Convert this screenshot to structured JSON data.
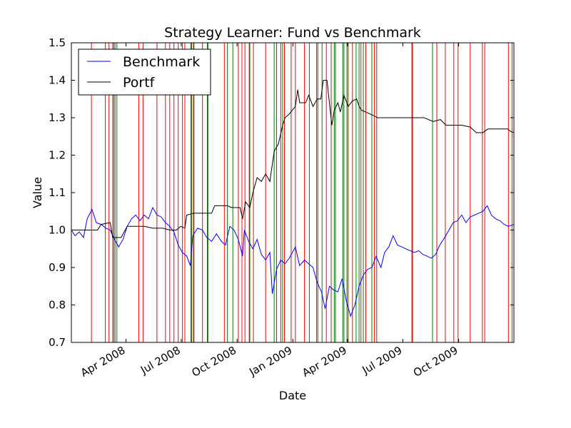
{
  "chart_data": {
    "type": "line",
    "title": "Strategy Learner: Fund vs Benchmark",
    "xlabel": "Date",
    "ylabel": "Value",
    "xlim": [
      "2008-01-02",
      "2009-12-31"
    ],
    "ylim": [
      0.7,
      1.5
    ],
    "x_ticks": [
      {
        "date": "2008-04-01",
        "label": "Apr 2008"
      },
      {
        "date": "2008-07-01",
        "label": "Jul 2008"
      },
      {
        "date": "2008-10-01",
        "label": "Oct 2008"
      },
      {
        "date": "2009-01-01",
        "label": "Jan 2009"
      },
      {
        "date": "2009-04-01",
        "label": "Apr 2009"
      },
      {
        "date": "2009-07-01",
        "label": "Jul 2009"
      },
      {
        "date": "2009-10-01",
        "label": "Oct 2009"
      }
    ],
    "y_ticks": [
      "0.7",
      "0.8",
      "0.9",
      "1.0",
      "1.1",
      "1.2",
      "1.3",
      "1.4",
      "1.5"
    ],
    "legend": {
      "position": "top-left"
    },
    "grid": false,
    "series": [
      {
        "name": "Benchmark",
        "color": "#0000ff",
        "points": [
          [
            "2008-01-02",
            1.0
          ],
          [
            "2008-01-08",
            0.985
          ],
          [
            "2008-01-15",
            0.995
          ],
          [
            "2008-01-22",
            0.98
          ],
          [
            "2008-01-28",
            1.03
          ],
          [
            "2008-02-05",
            1.055
          ],
          [
            "2008-02-12",
            1.02
          ],
          [
            "2008-02-20",
            1.015
          ],
          [
            "2008-02-28",
            1.005
          ],
          [
            "2008-03-06",
            1.0
          ],
          [
            "2008-03-13",
            0.975
          ],
          [
            "2008-03-20",
            0.955
          ],
          [
            "2008-03-27",
            0.975
          ],
          [
            "2008-04-03",
            1.01
          ],
          [
            "2008-04-10",
            1.03
          ],
          [
            "2008-04-17",
            1.04
          ],
          [
            "2008-04-24",
            1.025
          ],
          [
            "2008-05-01",
            1.04
          ],
          [
            "2008-05-08",
            1.03
          ],
          [
            "2008-05-15",
            1.06
          ],
          [
            "2008-05-22",
            1.04
          ],
          [
            "2008-05-29",
            1.035
          ],
          [
            "2008-06-05",
            1.02
          ],
          [
            "2008-06-12",
            1.01
          ],
          [
            "2008-06-19",
            0.995
          ],
          [
            "2008-06-26",
            0.96
          ],
          [
            "2008-07-03",
            0.94
          ],
          [
            "2008-07-10",
            0.93
          ],
          [
            "2008-07-16",
            0.905
          ],
          [
            "2008-07-20",
            0.985
          ],
          [
            "2008-07-28",
            1.005
          ],
          [
            "2008-08-05",
            1.0
          ],
          [
            "2008-08-12",
            0.98
          ],
          [
            "2008-08-20",
            0.97
          ],
          [
            "2008-08-28",
            0.99
          ],
          [
            "2008-09-05",
            0.97
          ],
          [
            "2008-09-12",
            0.96
          ],
          [
            "2008-09-19",
            1.01
          ],
          [
            "2008-09-26",
            1.0
          ],
          [
            "2008-10-03",
            0.975
          ],
          [
            "2008-10-10",
            0.93
          ],
          [
            "2008-10-13",
            1.0
          ],
          [
            "2008-10-20",
            0.97
          ],
          [
            "2008-10-27",
            0.95
          ],
          [
            "2008-11-03",
            0.975
          ],
          [
            "2008-11-10",
            0.935
          ],
          [
            "2008-11-17",
            0.92
          ],
          [
            "2008-11-24",
            0.94
          ],
          [
            "2008-11-28",
            0.83
          ],
          [
            "2008-12-05",
            0.895
          ],
          [
            "2008-12-12",
            0.92
          ],
          [
            "2008-12-19",
            0.91
          ],
          [
            "2008-12-26",
            0.925
          ],
          [
            "2009-01-05",
            0.955
          ],
          [
            "2009-01-12",
            0.905
          ],
          [
            "2009-01-20",
            0.92
          ],
          [
            "2009-01-27",
            0.91
          ],
          [
            "2009-02-03",
            0.9
          ],
          [
            "2009-02-10",
            0.86
          ],
          [
            "2009-02-17",
            0.835
          ],
          [
            "2009-02-23",
            0.79
          ],
          [
            "2009-03-02",
            0.85
          ],
          [
            "2009-03-09",
            0.84
          ],
          [
            "2009-03-16",
            0.835
          ],
          [
            "2009-03-23",
            0.87
          ],
          [
            "2009-03-30",
            0.81
          ],
          [
            "2009-04-06",
            0.77
          ],
          [
            "2009-04-13",
            0.8
          ],
          [
            "2009-04-20",
            0.85
          ],
          [
            "2009-04-27",
            0.88
          ],
          [
            "2009-05-04",
            0.895
          ],
          [
            "2009-05-11",
            0.9
          ],
          [
            "2009-05-18",
            0.93
          ],
          [
            "2009-05-26",
            0.9
          ],
          [
            "2009-06-01",
            0.94
          ],
          [
            "2009-06-08",
            0.955
          ],
          [
            "2009-06-15",
            0.985
          ],
          [
            "2009-06-22",
            0.96
          ],
          [
            "2009-06-29",
            0.955
          ],
          [
            "2009-07-06",
            0.95
          ],
          [
            "2009-07-13",
            0.945
          ],
          [
            "2009-07-20",
            0.94
          ],
          [
            "2009-07-27",
            0.945
          ],
          [
            "2009-08-03",
            0.935
          ],
          [
            "2009-08-10",
            0.93
          ],
          [
            "2009-08-17",
            0.925
          ],
          [
            "2009-08-24",
            0.935
          ],
          [
            "2009-08-31",
            0.96
          ],
          [
            "2009-09-08",
            0.98
          ],
          [
            "2009-09-15",
            1.0
          ],
          [
            "2009-09-22",
            1.02
          ],
          [
            "2009-09-29",
            1.025
          ],
          [
            "2009-10-06",
            1.04
          ],
          [
            "2009-10-13",
            1.02
          ],
          [
            "2009-10-20",
            1.035
          ],
          [
            "2009-10-27",
            1.04
          ],
          [
            "2009-11-03",
            1.045
          ],
          [
            "2009-11-10",
            1.05
          ],
          [
            "2009-11-17",
            1.065
          ],
          [
            "2009-11-24",
            1.04
          ],
          [
            "2009-12-01",
            1.03
          ],
          [
            "2009-12-08",
            1.025
          ],
          [
            "2009-12-15",
            1.015
          ],
          [
            "2009-12-22",
            1.01
          ],
          [
            "2009-12-31",
            1.015
          ]
        ]
      },
      {
        "name": "Portf",
        "color": "#000000",
        "points": [
          [
            "2008-01-02",
            1.0
          ],
          [
            "2008-02-14",
            1.0
          ],
          [
            "2008-02-20",
            1.015
          ],
          [
            "2008-03-06",
            1.02
          ],
          [
            "2008-03-10",
            0.98
          ],
          [
            "2008-03-24",
            0.98
          ],
          [
            "2008-04-03",
            1.01
          ],
          [
            "2008-05-01",
            1.01
          ],
          [
            "2008-05-15",
            1.005
          ],
          [
            "2008-06-01",
            1.005
          ],
          [
            "2008-06-12",
            1.0
          ],
          [
            "2008-06-23",
            1.0
          ],
          [
            "2008-06-30",
            1.01
          ],
          [
            "2008-07-07",
            1.005
          ],
          [
            "2008-07-10",
            1.04
          ],
          [
            "2008-07-22",
            1.045
          ],
          [
            "2008-08-05",
            1.045
          ],
          [
            "2008-08-20",
            1.045
          ],
          [
            "2008-08-25",
            1.065
          ],
          [
            "2008-09-15",
            1.065
          ],
          [
            "2008-09-22",
            1.06
          ],
          [
            "2008-10-06",
            1.06
          ],
          [
            "2008-10-10",
            1.03
          ],
          [
            "2008-10-15",
            1.075
          ],
          [
            "2008-10-22",
            1.06
          ],
          [
            "2008-10-27",
            1.1
          ],
          [
            "2008-11-03",
            1.14
          ],
          [
            "2008-11-10",
            1.13
          ],
          [
            "2008-11-17",
            1.15
          ],
          [
            "2008-11-24",
            1.13
          ],
          [
            "2008-12-01",
            1.21
          ],
          [
            "2008-12-08",
            1.23
          ],
          [
            "2008-12-15",
            1.28
          ],
          [
            "2008-12-19",
            1.3
          ],
          [
            "2008-12-26",
            1.31
          ],
          [
            "2009-01-05",
            1.33
          ],
          [
            "2009-01-09",
            1.375
          ],
          [
            "2009-01-12",
            1.34
          ],
          [
            "2009-01-22",
            1.34
          ],
          [
            "2009-01-27",
            1.36
          ],
          [
            "2009-02-03",
            1.33
          ],
          [
            "2009-02-10",
            1.35
          ],
          [
            "2009-02-16",
            1.35
          ],
          [
            "2009-02-20",
            1.4
          ],
          [
            "2009-02-26",
            1.4
          ],
          [
            "2009-03-04",
            1.31
          ],
          [
            "2009-03-06",
            1.28
          ],
          [
            "2009-03-10",
            1.32
          ],
          [
            "2009-03-16",
            1.34
          ],
          [
            "2009-03-20",
            1.315
          ],
          [
            "2009-03-26",
            1.36
          ],
          [
            "2009-04-02",
            1.33
          ],
          [
            "2009-04-09",
            1.345
          ],
          [
            "2009-04-16",
            1.35
          ],
          [
            "2009-04-20",
            1.33
          ],
          [
            "2009-04-24",
            1.32
          ],
          [
            "2009-05-01",
            1.315
          ],
          [
            "2009-05-08",
            1.31
          ],
          [
            "2009-05-15",
            1.305
          ],
          [
            "2009-05-20",
            1.3
          ],
          [
            "2009-06-15",
            1.3
          ],
          [
            "2009-07-20",
            1.3
          ],
          [
            "2009-08-05",
            1.3
          ],
          [
            "2009-08-20",
            1.29
          ],
          [
            "2009-09-01",
            1.295
          ],
          [
            "2009-09-10",
            1.28
          ],
          [
            "2009-10-06",
            1.28
          ],
          [
            "2009-10-20",
            1.275
          ],
          [
            "2009-10-30",
            1.26
          ],
          [
            "2009-11-10",
            1.26
          ],
          [
            "2009-11-18",
            1.27
          ],
          [
            "2009-12-21",
            1.27
          ],
          [
            "2009-12-24",
            1.265
          ],
          [
            "2009-12-31",
            1.26
          ]
        ]
      }
    ],
    "signal_lines": {
      "sell_color": "#ff0000",
      "buy_color": "#008000",
      "sell": [
        "2008-02-04",
        "2008-02-27",
        "2008-03-04",
        "2008-03-10",
        "2008-04-22",
        "2008-04-29",
        "2008-05-22",
        "2008-06-05",
        "2008-06-12",
        "2008-06-19",
        "2008-06-26",
        "2008-07-03",
        "2008-07-07",
        "2008-07-17",
        "2008-07-21",
        "2008-08-05",
        "2008-08-14",
        "2008-09-10",
        "2008-10-03",
        "2008-10-09",
        "2008-10-14",
        "2008-10-21",
        "2008-10-28",
        "2008-11-17",
        "2008-12-05",
        "2008-12-12",
        "2008-12-18",
        "2008-12-29",
        "2009-01-05",
        "2009-01-20",
        "2009-02-11",
        "2009-02-25",
        "2009-03-05",
        "2009-04-02",
        "2009-04-09",
        "2009-04-23",
        "2009-05-01",
        "2009-05-15",
        "2009-05-19",
        "2009-07-16",
        "2009-07-17",
        "2009-08-26",
        "2009-09-09",
        "2009-09-23",
        "2009-09-30",
        "2009-10-20",
        "2009-11-09",
        "2009-11-13",
        "2009-12-22",
        "2009-12-28"
      ],
      "buy": [
        "2008-03-12",
        "2008-03-14",
        "2008-03-17",
        "2008-07-18",
        "2008-07-22",
        "2008-08-13",
        "2008-09-15",
        "2008-09-24",
        "2008-10-22",
        "2008-12-01",
        "2008-12-15",
        "2009-01-28",
        "2009-02-09",
        "2009-02-18",
        "2009-03-10",
        "2009-03-12",
        "2009-03-24",
        "2009-03-26",
        "2009-03-31",
        "2009-04-15",
        "2009-04-20",
        "2009-04-27",
        "2009-05-11",
        "2009-08-19"
      ]
    }
  }
}
